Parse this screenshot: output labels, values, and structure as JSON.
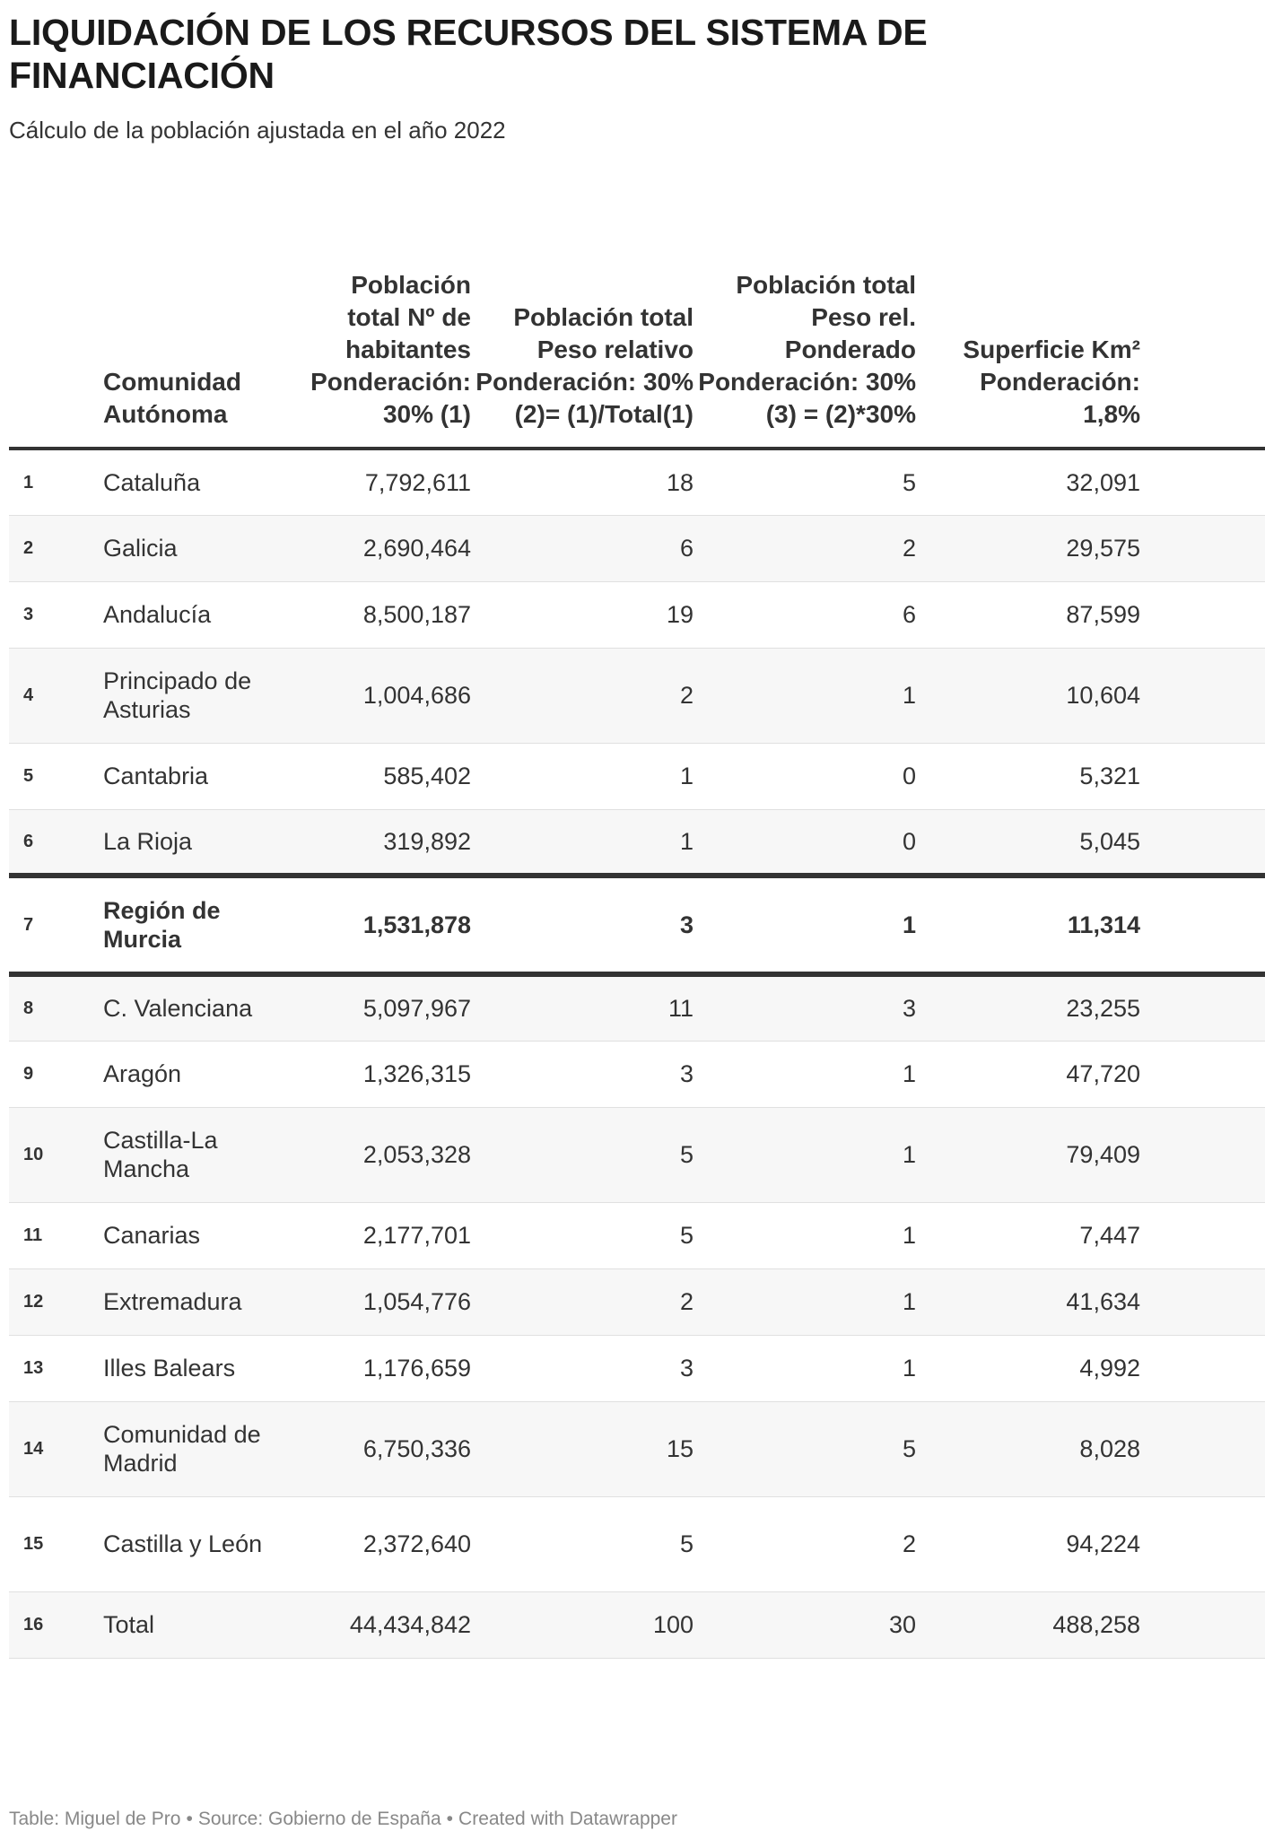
{
  "title": "LIQUIDACIÓN DE LOS RECURSOS DEL SISTEMA DE FINANCIACIÓN",
  "subtitle": "Cálculo de la población ajustada en el año 2022",
  "table": {
    "headers": [
      "",
      "Comunidad Autónoma",
      "Población total Nº de habitantes Ponderación: 30% (1)",
      "Población total Peso relativo Ponderación: 30% (2)= (1)/Total(1)",
      "Población total Peso rel. Ponderado Ponderación: 30% (3) = (2)*30%",
      "Superficie Km² Ponderación: 1,8%"
    ],
    "rows": [
      {
        "n": "1",
        "name": "Cataluña",
        "pop": "7,792,611",
        "rel": "18",
        "pond": "5",
        "sup": "32,091"
      },
      {
        "n": "2",
        "name": "Galicia",
        "pop": "2,690,464",
        "rel": "6",
        "pond": "2",
        "sup": "29,575"
      },
      {
        "n": "3",
        "name": "Andalucía",
        "pop": "8,500,187",
        "rel": "19",
        "pond": "6",
        "sup": "87,599"
      },
      {
        "n": "4",
        "name": "Principado de Asturias",
        "pop": "1,004,686",
        "rel": "2",
        "pond": "1",
        "sup": "10,604"
      },
      {
        "n": "5",
        "name": "Cantabria",
        "pop": "585,402",
        "rel": "1",
        "pond": "0",
        "sup": "5,321"
      },
      {
        "n": "6",
        "name": "La Rioja",
        "pop": "319,892",
        "rel": "1",
        "pond": "0",
        "sup": "5,045"
      },
      {
        "n": "7",
        "name": "Región de Murcia",
        "pop": "1,531,878",
        "rel": "3",
        "pond": "1",
        "sup": "11,314",
        "highlight": true
      },
      {
        "n": "8",
        "name": "C. Valenciana",
        "pop": "5,097,967",
        "rel": "11",
        "pond": "3",
        "sup": "23,255"
      },
      {
        "n": "9",
        "name": "Aragón",
        "pop": "1,326,315",
        "rel": "3",
        "pond": "1",
        "sup": "47,720"
      },
      {
        "n": "10",
        "name": "Castilla-La Mancha",
        "pop": "2,053,328",
        "rel": "5",
        "pond": "1",
        "sup": "79,409"
      },
      {
        "n": "11",
        "name": "Canarias",
        "pop": "2,177,701",
        "rel": "5",
        "pond": "1",
        "sup": "7,447"
      },
      {
        "n": "12",
        "name": "Extremadura",
        "pop": "1,054,776",
        "rel": "2",
        "pond": "1",
        "sup": "41,634"
      },
      {
        "n": "13",
        "name": "Illes Balears",
        "pop": "1,176,659",
        "rel": "3",
        "pond": "1",
        "sup": "4,992"
      },
      {
        "n": "14",
        "name": "Comunidad de Madrid",
        "pop": "6,750,336",
        "rel": "15",
        "pond": "5",
        "sup": "8,028"
      },
      {
        "n": "15",
        "name": "Castilla y León",
        "pop": "2,372,640",
        "rel": "5",
        "pond": "2",
        "sup": "94,224"
      },
      {
        "n": "16",
        "name": "Total",
        "pop": "44,434,842",
        "rel": "100",
        "pond": "30",
        "sup": "488,258"
      }
    ]
  },
  "footer": {
    "table_by": "Table: Miguel de Pro",
    "source": "Source: Gobierno de España",
    "credit": "Created with Datawrapper",
    "separator": "•"
  }
}
